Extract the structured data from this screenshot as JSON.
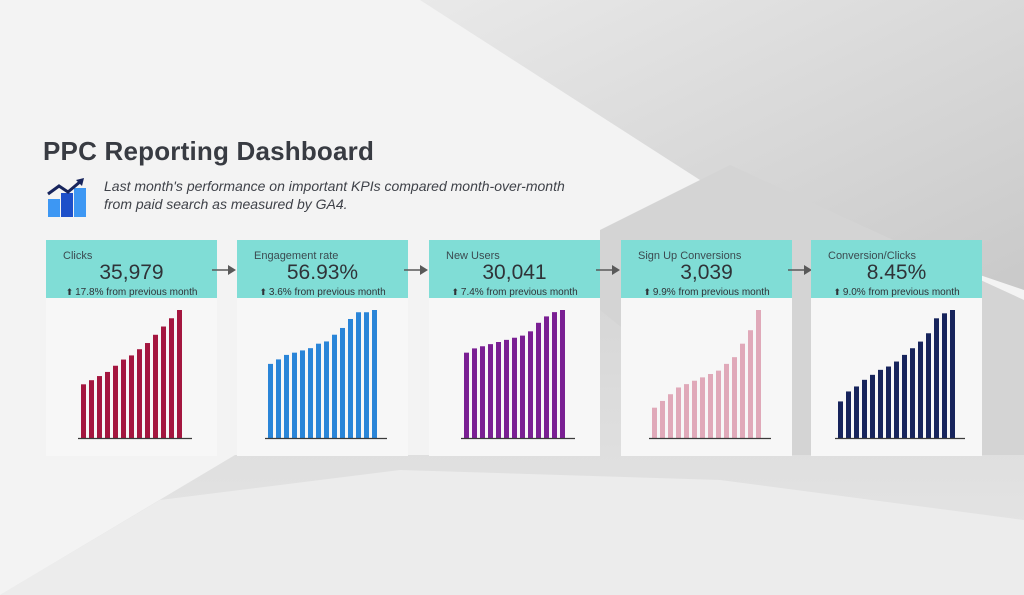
{
  "title": "PPC Reporting Dashboard",
  "subtitle_line1": "Last month's performance on important KPIs compared month-over-month",
  "subtitle_line2": "from paid search as measured by GA4.",
  "logo_icon": "trending-up-chart-icon",
  "kpi_box_color": "#80ddd6",
  "chart_data": [
    {
      "type": "bar",
      "label": "Clicks",
      "value": "35,979",
      "delta_icon": "arrow-up-icon",
      "delta": "17.8% from previous month",
      "color": "#a4163f",
      "values": [
        13,
        14,
        15,
        16,
        17.5,
        19,
        20,
        21.5,
        23,
        25,
        27,
        29,
        31
      ]
    },
    {
      "type": "bar",
      "label": "Engagement rate",
      "value": "56.93%",
      "delta_icon": "arrow-up-icon",
      "delta": "3.6% from previous month",
      "color": "#2a85d8",
      "values": [
        33,
        35,
        37,
        38,
        39,
        40,
        42,
        43,
        46,
        49,
        53,
        56,
        56,
        57
      ]
    },
    {
      "type": "bar",
      "label": "New Users",
      "value": "30,041",
      "delta_icon": "arrow-up-icon",
      "delta": "7.4% from previous month",
      "color": "#7a1f93",
      "values": [
        20,
        21,
        21.5,
        22,
        22.5,
        23,
        23.5,
        24,
        25,
        27,
        28.5,
        29.5,
        30
      ]
    },
    {
      "type": "bar",
      "label": "Sign Up Conversions",
      "value": "3,039",
      "delta_icon": "arrow-up-icon",
      "delta": "9.9% from previous month",
      "color": "#e0a9b9",
      "values": [
        9,
        11,
        13,
        15,
        16,
        17,
        18,
        19,
        20,
        22,
        24,
        28,
        32,
        38
      ]
    },
    {
      "type": "bar",
      "label": "Conversion/Clicks",
      "value": "8.45%",
      "delta_icon": "arrow-up-icon",
      "delta": "9.0% from previous month",
      "color": "#17245c",
      "values": [
        2.2,
        2.8,
        3.1,
        3.5,
        3.8,
        4.1,
        4.3,
        4.6,
        5.0,
        5.4,
        5.8,
        6.3,
        7.2,
        7.5,
        7.7
      ]
    }
  ]
}
